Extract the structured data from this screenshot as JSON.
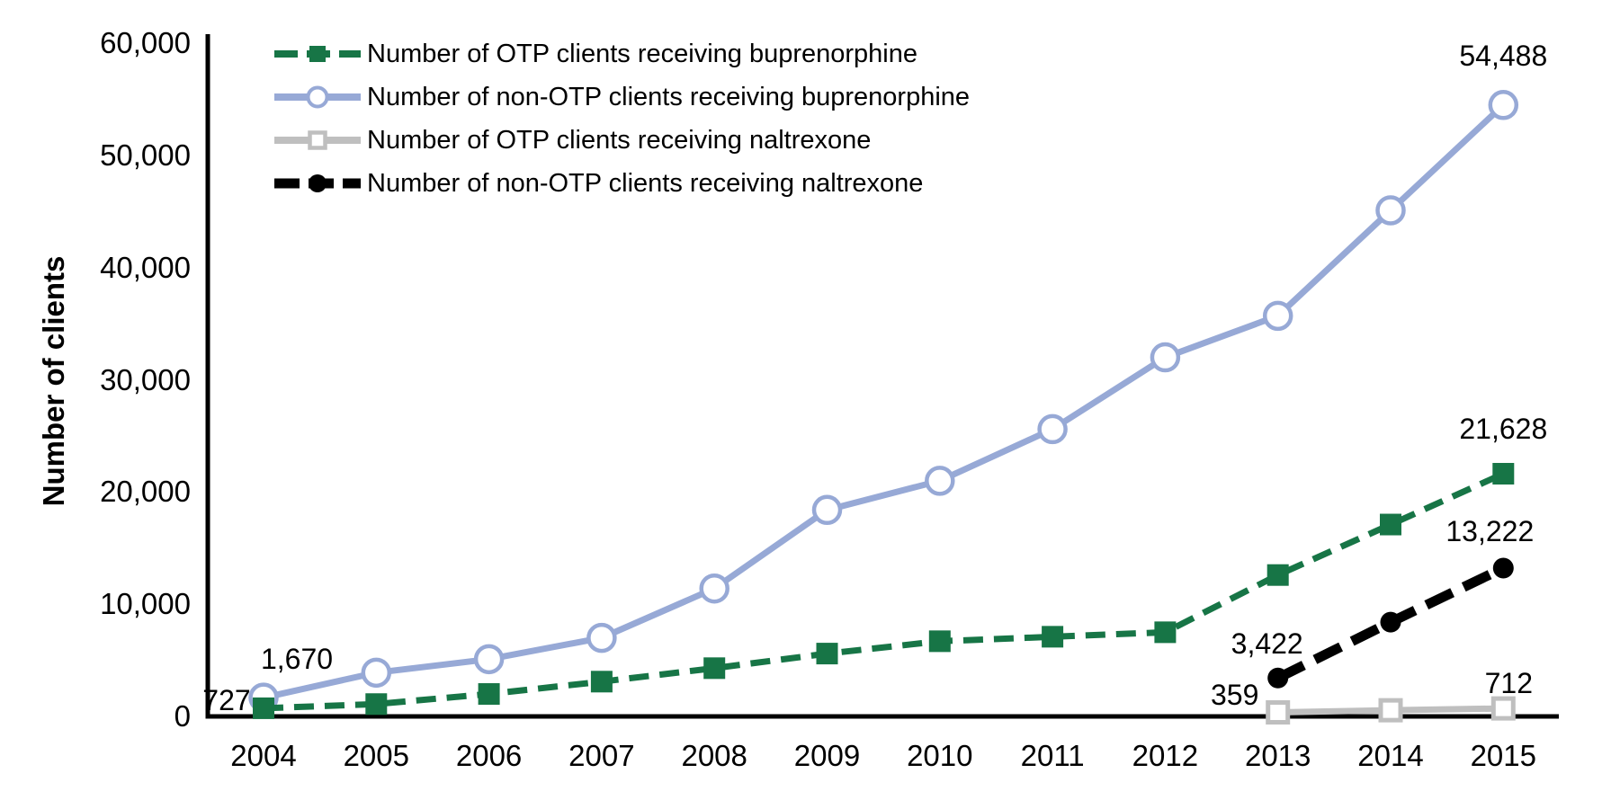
{
  "figure": {
    "ylabel": "Number of clients"
  },
  "axes": {
    "y_ticks": [
      "0",
      "10,000",
      "20,000",
      "30,000",
      "40,000",
      "50,000",
      "60,000"
    ],
    "x_ticks": [
      "2004",
      "2005",
      "2006",
      "2007",
      "2008",
      "2009",
      "2010",
      "2011",
      "2012",
      "2013",
      "2014",
      "2015"
    ]
  },
  "legend": {
    "items": [
      {
        "key": "otp_buprenorphine",
        "label": "Number of OTP clients receiving buprenorphine"
      },
      {
        "key": "non_otp_buprenorphine",
        "label": "Number of non-OTP clients receiving buprenorphine"
      },
      {
        "key": "otp_naltrexone",
        "label": "Number of OTP clients receiving naltrexone"
      },
      {
        "key": "non_otp_naltrexone",
        "label": "Number of non-OTP clients receiving naltrexone"
      }
    ]
  },
  "colors": {
    "otp_buprenorphine": "#177546",
    "non_otp_buprenorphine": "#97A9D6",
    "otp_naltrexone": "#BFBFBF",
    "non_otp_naltrexone": "#000000",
    "axis": "#000000"
  },
  "chart_data": {
    "type": "line",
    "title": "",
    "xlabel": "",
    "ylabel": "Number of clients",
    "ylim": [
      0,
      60000
    ],
    "grid": false,
    "legend_position": "top-left-inside",
    "x": [
      2004,
      2005,
      2006,
      2007,
      2008,
      2009,
      2010,
      2011,
      2012,
      2013,
      2014,
      2015
    ],
    "series": [
      {
        "key": "otp_buprenorphine",
        "name": "Number of OTP clients receiving buprenorphine",
        "color": "#177546",
        "line": "dashed",
        "marker": "filled-square",
        "values": [
          727,
          1100,
          2000,
          3100,
          4300,
          5600,
          6700,
          7100,
          7500,
          12600,
          17100,
          21628
        ]
      },
      {
        "key": "non_otp_buprenorphine",
        "name": "Number of non-OTP clients receiving buprenorphine",
        "color": "#97A9D6",
        "line": "solid",
        "marker": "open-circle",
        "values": [
          1670,
          3900,
          5100,
          7000,
          11400,
          18400,
          21000,
          25600,
          32000,
          35700,
          45100,
          54488
        ]
      },
      {
        "key": "otp_naltrexone",
        "name": "Number of OTP clients receiving naltrexone",
        "color": "#BFBFBF",
        "line": "solid",
        "marker": "open-square",
        "values": [
          null,
          null,
          null,
          null,
          null,
          null,
          null,
          null,
          null,
          359,
          550,
          712
        ]
      },
      {
        "key": "non_otp_naltrexone",
        "name": "Number of non-OTP clients receiving naltrexone",
        "color": "#000000",
        "line": "dashed",
        "marker": "filled-circle",
        "values": [
          null,
          null,
          null,
          null,
          null,
          null,
          null,
          null,
          null,
          3422,
          8400,
          13222
        ]
      }
    ],
    "point_labels": [
      {
        "series": "otp_buprenorphine",
        "year": 2004,
        "text": "727"
      },
      {
        "series": "non_otp_buprenorphine",
        "year": 2004,
        "text": "1,670"
      },
      {
        "series": "non_otp_buprenorphine",
        "year": 2015,
        "text": "54,488"
      },
      {
        "series": "otp_buprenorphine",
        "year": 2015,
        "text": "21,628"
      },
      {
        "series": "non_otp_naltrexone",
        "year": 2013,
        "text": "3,422"
      },
      {
        "series": "non_otp_naltrexone",
        "year": 2015,
        "text": "13,222"
      },
      {
        "series": "otp_naltrexone",
        "year": 2013,
        "text": "359"
      },
      {
        "series": "otp_naltrexone",
        "year": 2015,
        "text": "712"
      }
    ]
  }
}
